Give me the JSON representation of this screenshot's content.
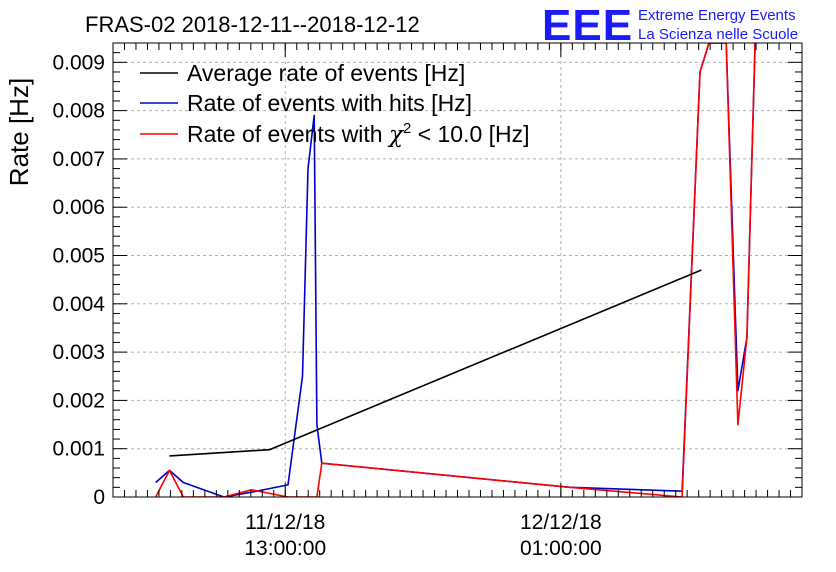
{
  "chart_data": {
    "type": "line",
    "title": "FRAS-02 2018-12-11--2018-12-12",
    "xlabel": "",
    "ylabel": "Rate [Hz]",
    "xlim": [
      0,
      100
    ],
    "ylim": [
      0,
      0.0094
    ],
    "yticks": [
      {
        "value": 0,
        "label": "0"
      },
      {
        "value": 0.001,
        "label": "0.001"
      },
      {
        "value": 0.002,
        "label": "0.002"
      },
      {
        "value": 0.003,
        "label": "0.003"
      },
      {
        "value": 0.004,
        "label": "0.004"
      },
      {
        "value": 0.005,
        "label": "0.005"
      },
      {
        "value": 0.006,
        "label": "0.006"
      },
      {
        "value": 0.007,
        "label": "0.007"
      },
      {
        "value": 0.008,
        "label": "0.008"
      },
      {
        "value": 0.009,
        "label": "0.009"
      }
    ],
    "xticks": [
      {
        "value": 25,
        "line1": "11/12/18",
        "line2": "13:00:00"
      },
      {
        "value": 65,
        "line1": "12/12/18",
        "line2": "01:00:00"
      }
    ],
    "series": [
      {
        "name": "Average rate of events [Hz]",
        "label_parts": [
          "Average rate of events [Hz]"
        ],
        "color": "#000000",
        "x": [
          8.2,
          22.7,
          85.4
        ],
        "y": [
          0.00085,
          0.00098,
          0.0047
        ]
      },
      {
        "name": "Rate of events with hits [Hz]",
        "label_parts": [
          "Rate of events with hits [Hz]"
        ],
        "color": "#0000cc",
        "x": [
          6.2,
          8.2,
          10.2,
          16.1,
          20.1,
          25.4,
          27.5,
          28.3,
          29.2,
          29.6,
          30.3,
          66.3,
          82.6,
          85.2,
          86.5,
          87.3,
          89.0,
          90.7,
          92.0,
          93.2
        ],
        "y": [
          0.0003,
          0.00055,
          0.0003,
          0.0,
          0.0001,
          0.00025,
          0.0025,
          0.0068,
          0.0079,
          0.0015,
          0.0007,
          0.0002,
          0.00012,
          0.0088,
          0.0094,
          0.0094,
          0.0094,
          0.0022,
          0.0033,
          0.0094
        ]
      },
      {
        "name": "Rate of events with χ2 < 10.0 [Hz]",
        "label_parts": [
          "Rate of events with ",
          "χ",
          "2",
          " < 10.0 [Hz]"
        ],
        "color": "#ff0000",
        "x": [
          6.2,
          8.2,
          10.2,
          16.1,
          20.1,
          25.4,
          29.6,
          30.3,
          66.3,
          82.6,
          85.2,
          86.5,
          87.3,
          89.0,
          90.7,
          92.0,
          93.2
        ],
        "y": [
          0.0,
          0.00055,
          0.0,
          0.0,
          0.00015,
          0.0,
          0.0,
          0.0007,
          0.0002,
          0.0,
          0.0088,
          0.0094,
          0.0094,
          0.0094,
          0.0015,
          0.0033,
          0.0094
        ]
      }
    ]
  },
  "logo": {
    "letters": "EEE",
    "line1": "Extreme Energy Events",
    "line2": "La Scienza nelle Scuole"
  }
}
